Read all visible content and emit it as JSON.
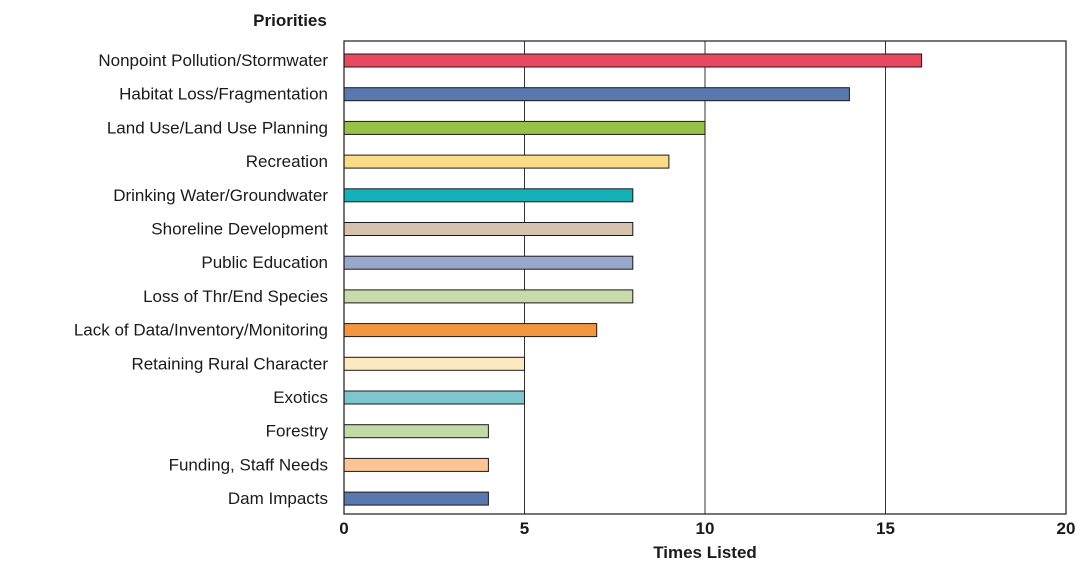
{
  "chart_data": {
    "type": "bar",
    "orientation": "horizontal",
    "category_axis_title": "Priorities",
    "xlabel": "Times Listed",
    "xlim": [
      0,
      20
    ],
    "xticks": [
      0,
      5,
      10,
      15,
      20
    ],
    "grid": true,
    "legend": "none",
    "categories": [
      "Nonpoint Pollution/Stormwater",
      "Habitat Loss/Fragmentation",
      "Land Use/Land Use Planning",
      "Recreation",
      "Drinking Water/Groundwater",
      "Shoreline Development ",
      "Public Education",
      "Loss of Thr/End Species",
      "Lack of Data/Inventory/Monitoring",
      "Retaining Rural Character",
      "Exotics",
      "Forestry",
      "Funding, Staff Needs",
      "Dam Impacts"
    ],
    "values": [
      16,
      14,
      10,
      9,
      8,
      8,
      8,
      8,
      7,
      5,
      5,
      4,
      4,
      4
    ],
    "colors": [
      "#e8495f",
      "#5a78b0",
      "#97c24a",
      "#fadb86",
      "#14b1b9",
      "#d5c3ad",
      "#9aa7cc",
      "#c9dbad",
      "#f4953f",
      "#fde9c0",
      "#7ec6cf",
      "#c3d9a6",
      "#fdc596",
      "#5a78b0"
    ]
  }
}
